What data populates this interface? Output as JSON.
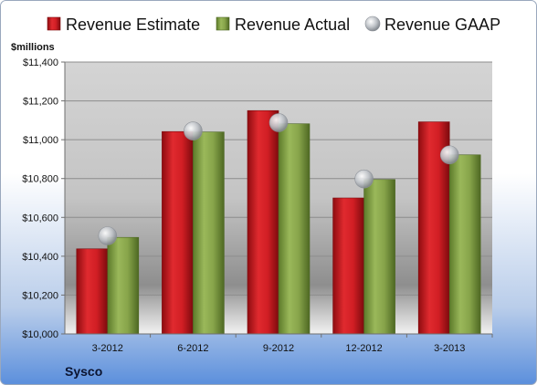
{
  "company": "Sysco",
  "colors": {
    "estimate": "#d81f26",
    "actual": "#8aa74c",
    "gaap": "#c0c4c8"
  },
  "chart_data": {
    "type": "bar",
    "unit_label": "$millions",
    "categories": [
      "3-2012",
      "6-2012",
      "9-2012",
      "12-2012",
      "3-2013"
    ],
    "series": [
      {
        "name": "Revenue Estimate",
        "kind": "bar",
        "values": [
          10438,
          11042,
          11150,
          10700,
          11092
        ]
      },
      {
        "name": "Revenue Actual",
        "kind": "bar",
        "values": [
          10497,
          11040,
          11082,
          10795,
          10922
        ]
      },
      {
        "name": "Revenue GAAP",
        "kind": "marker",
        "values": [
          10505,
          11045,
          11088,
          10798,
          10922
        ]
      }
    ],
    "ylim": [
      10000,
      11400
    ],
    "yticks": [
      10000,
      10200,
      10400,
      10600,
      10800,
      11000,
      11200,
      11400
    ],
    "ytick_labels": [
      "$10,000",
      "$10,200",
      "$10,400",
      "$10,600",
      "$10,800",
      "$11,000",
      "$11,200",
      "$11,400"
    ],
    "grid": true,
    "legend_position": "top"
  }
}
